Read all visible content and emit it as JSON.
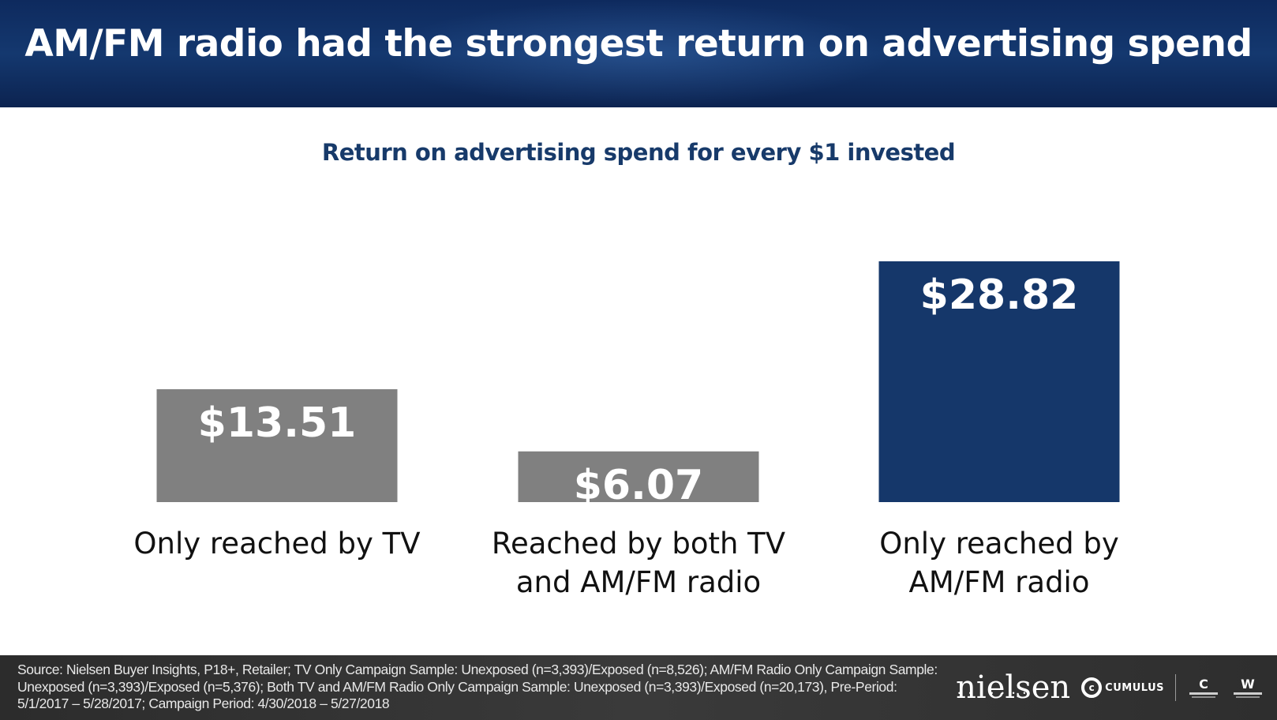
{
  "header": {
    "title": "AM/FM radio had the strongest return on advertising spend"
  },
  "chart_data": {
    "type": "bar",
    "title": "Return on advertising spend for every $1 invested",
    "categories": [
      "Only reached by TV",
      "Reached by both TV and AM/FM radio",
      "Only reached by AM/FM radio"
    ],
    "category_lines": [
      [
        "Only reached by TV"
      ],
      [
        "Reached by both TV",
        "and AM/FM radio"
      ],
      [
        "Only reached by",
        "AM/FM radio"
      ]
    ],
    "values": [
      13.51,
      6.07,
      28.82
    ],
    "value_labels": [
      "$13.51",
      "$6.07",
      "$28.82"
    ],
    "colors": [
      "#808080",
      "#808080",
      "#15376a"
    ],
    "xlabel": "",
    "ylabel": "",
    "grid": false,
    "legend": "none"
  },
  "footer": {
    "source": "Source: Nielsen Buyer Insights, P18+, Retailer; TV Only Campaign Sample: Unexposed (n=3,393)/Exposed (n=8,526); AM/FM Radio Only Campaign Sample: Unexposed (n=3,393)/Exposed (n=5,376); Both TV and AM/FM Radio Only Campaign Sample: Unexposed (n=3,393)/Exposed (n=20,173), Pre-Period: 5/1/2017 – 5/28/2017; Campaign Period: 4/30/2018 – 5/27/2018",
    "logos": {
      "nielsen": "nielsen",
      "cumulus": "CUMULUS",
      "cumulus_icon": "cumulus-c-icon",
      "cumulus_radio_icon": "cumulus-radio-icon",
      "westwood_one_icon": "westwood-one-icon"
    }
  }
}
